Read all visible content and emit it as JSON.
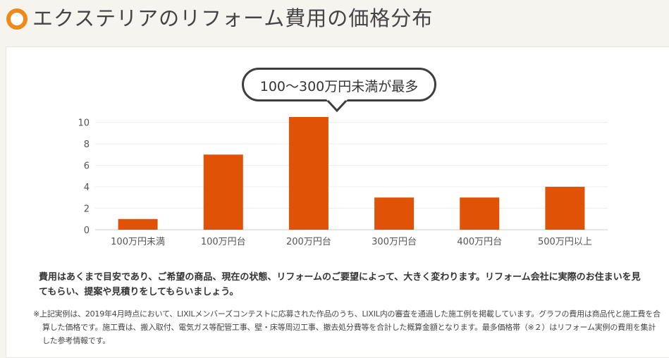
{
  "header": {
    "title": "エクステリアのリフォーム費用の価格分布",
    "icon": "ring-bullet-icon",
    "accent_color": "#ee8a1c"
  },
  "bubble": {
    "text": "100～300万円未満が最多"
  },
  "chart_data": {
    "type": "bar",
    "categories": [
      "100万円未満",
      "100万円台",
      "200万円台",
      "300万円台",
      "400万円台",
      "500万円以上"
    ],
    "values": [
      1,
      7,
      10.5,
      3,
      3,
      4
    ],
    "title": "",
    "xlabel": "",
    "ylabel": "",
    "ylim": [
      0,
      10.5
    ],
    "yticks": [
      0,
      2,
      4,
      6,
      8,
      10
    ],
    "grid": true,
    "bar_color": "#e05206"
  },
  "notes": {
    "main": "費用はあくまで目安であり、ご希望の商品、現在の状態、リフォームのご要望によって、大きく変わります。リフォーム会社に実際のお住まいを見てもらい、提案や見積りをしてもらいましょう。",
    "sub": "※上記実例は、2019年4月時点において、LIXILメンバーズコンテストに応募された作品のうち、LIXIL内の審査を通過した施工例を掲載しています。グラフの費用は商品代と施工費を合算した価格です。施工費は、搬入取付、電気ガス等配管工事、壁・床等周辺工事、撤去処分費等を合計した概算金額となります。最多価格帯（※２）はリフォーム実例の費用を集計した参考情報です。"
  }
}
